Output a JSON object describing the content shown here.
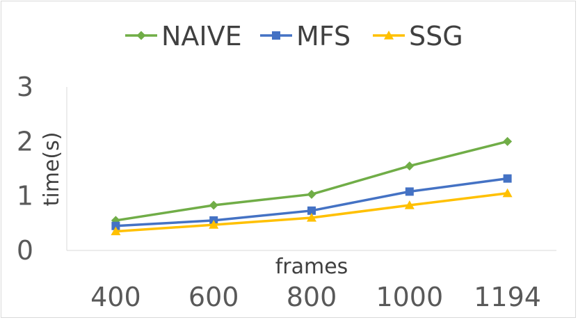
{
  "chart_data": {
    "type": "line",
    "categories": [
      "400",
      "600",
      "800",
      "1000",
      "1194"
    ],
    "series": [
      {
        "name": "NAIVE",
        "values": [
          0.55,
          0.83,
          1.03,
          1.55,
          2.0
        ],
        "color": "#70ad47",
        "marker": "diamond"
      },
      {
        "name": "MFS",
        "values": [
          0.45,
          0.55,
          0.73,
          1.08,
          1.32
        ],
        "color": "#4472c4",
        "marker": "square"
      },
      {
        "name": "SSG",
        "values": [
          0.35,
          0.47,
          0.6,
          0.83,
          1.05
        ],
        "color": "#ffc000",
        "marker": "triangle"
      }
    ],
    "xlabel": "frames",
    "ylabel": "time(s)",
    "yticks": [
      "0",
      "1",
      "2",
      "3"
    ],
    "ylim": [
      0,
      3
    ],
    "grid": false,
    "legend_position": "top"
  }
}
